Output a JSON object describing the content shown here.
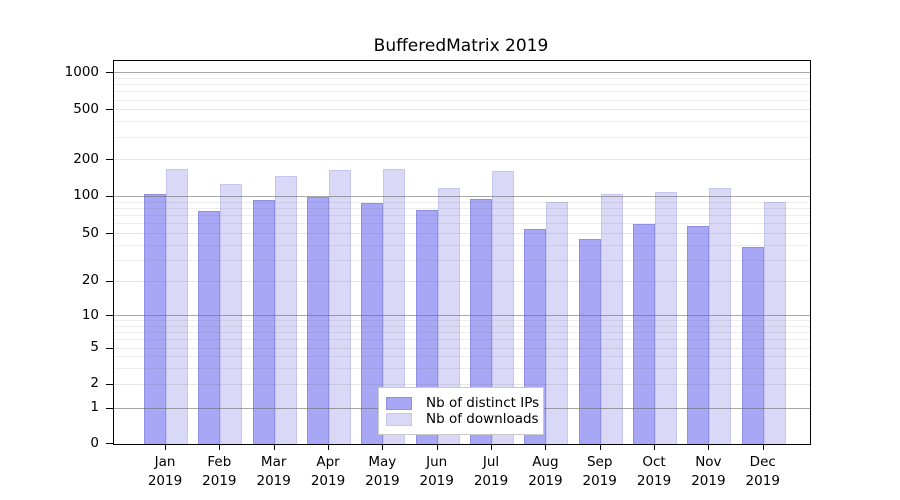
{
  "title": "BufferedMatrix 2019",
  "colors": {
    "distinct_ips_fill": "#a7a7f6",
    "distinct_ips_border": "#8f8fe4",
    "downloads_fill": "#d9d9f7",
    "downloads_border": "#c6c6ef",
    "axis": "#000000",
    "major_grid": "#696969",
    "minor_grid": "#ececec"
  },
  "legend": {
    "items": [
      {
        "label": "Nb of distinct IPs",
        "series_key": "distinct_ips"
      },
      {
        "label": "Nb of downloads",
        "series_key": "downloads"
      }
    ]
  },
  "chart_data": {
    "type": "bar",
    "title": "BufferedMatrix 2019",
    "categories": [
      "Jan 2019",
      "Feb 2019",
      "Mar 2019",
      "Apr 2019",
      "May 2019",
      "Jun 2019",
      "Jul 2019",
      "Aug 2019",
      "Sep 2019",
      "Oct 2019",
      "Nov 2019",
      "Dec 2019"
    ],
    "series": [
      {
        "name": "Nb of distinct IPs",
        "values": [
          104,
          75,
          92,
          97,
          87,
          77,
          95,
          54,
          45,
          59,
          57,
          38
        ]
      },
      {
        "name": "Nb of downloads",
        "values": [
          166,
          125,
          146,
          162,
          165,
          117,
          159,
          90,
          103,
          107,
          116,
          90
        ]
      }
    ],
    "y_ticks": [
      0,
      1,
      2,
      5,
      10,
      20,
      50,
      100,
      200,
      500,
      1000
    ],
    "y_scale": "log-like",
    "ylim": [
      0,
      1000
    ],
    "grid": "on",
    "legend_position": "bottom-center-inside"
  }
}
